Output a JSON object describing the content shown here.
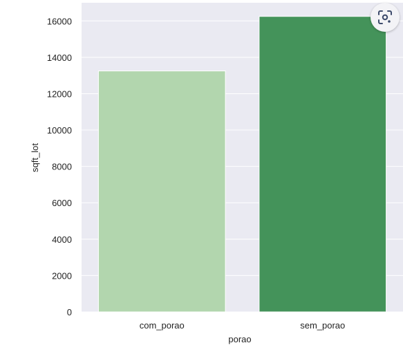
{
  "chart_data": {
    "type": "bar",
    "categories": [
      "com_porao",
      "sem_porao"
    ],
    "values": [
      13250,
      16250
    ],
    "xlabel": "porao",
    "ylabel": "sqft_lot",
    "ylim": [
      0,
      17000
    ],
    "yticks": [
      0,
      2000,
      4000,
      6000,
      8000,
      10000,
      12000,
      14000,
      16000
    ],
    "grid": true,
    "colors": {
      "background": "#eaeaf2",
      "grid": "#ffffff",
      "bars": [
        "#b2d6ae",
        "#44935a"
      ]
    }
  },
  "overlay": {
    "lens_icon": "visual-search-icon"
  }
}
